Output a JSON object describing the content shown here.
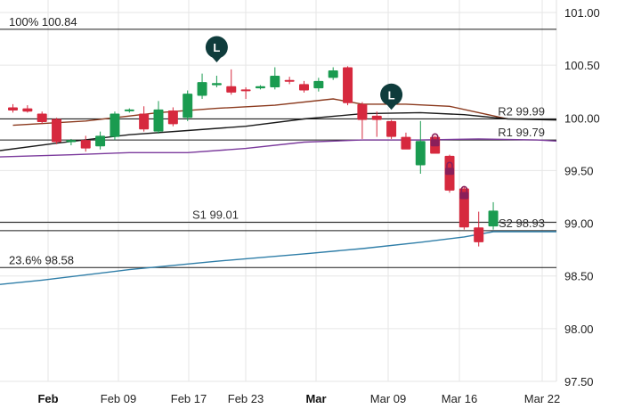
{
  "chart_data": {
    "type": "candlestick",
    "y_axis": {
      "ticks": [
        "101.00",
        "100.50",
        "100.00",
        "99.50",
        "99.00",
        "98.50",
        "98.00",
        "97.50"
      ],
      "ylim": [
        97.5,
        101.05
      ],
      "position": "right"
    },
    "x_axis": {
      "ticks": [
        {
          "label": "Feb",
          "bold": true
        },
        {
          "label": "Feb 09",
          "bold": false
        },
        {
          "label": "Feb 17",
          "bold": false
        },
        {
          "label": "Feb 23",
          "bold": false
        },
        {
          "label": "Mar",
          "bold": true
        },
        {
          "label": "Mar 09",
          "bold": false
        },
        {
          "label": "Mar 16",
          "bold": false
        },
        {
          "label": "Mar 22",
          "bold": false
        }
      ]
    },
    "grid": true,
    "colors": {
      "up": "#1a9b50",
      "down": "#d6293e",
      "grid": "#e6e6e6"
    },
    "candles": [
      {
        "o": 100.1,
        "h": 100.13,
        "l": 100.05,
        "c": 100.07
      },
      {
        "o": 100.09,
        "h": 100.12,
        "l": 100.05,
        "c": 100.06
      },
      {
        "o": 100.04,
        "h": 100.06,
        "l": 99.94,
        "c": 99.96
      },
      {
        "o": 99.99,
        "h": 100.0,
        "l": 99.75,
        "c": 99.77
      },
      {
        "o": 99.77,
        "h": 99.8,
        "l": 99.74,
        "c": 99.79
      },
      {
        "o": 99.79,
        "h": 99.83,
        "l": 99.68,
        "c": 99.71
      },
      {
        "o": 99.73,
        "h": 99.87,
        "l": 99.7,
        "c": 99.83
      },
      {
        "o": 99.82,
        "h": 100.06,
        "l": 99.79,
        "c": 100.04
      },
      {
        "o": 100.07,
        "h": 100.09,
        "l": 100.05,
        "c": 100.08
      },
      {
        "o": 100.04,
        "h": 100.11,
        "l": 99.87,
        "c": 99.89
      },
      {
        "o": 99.87,
        "h": 100.16,
        "l": 99.85,
        "c": 100.08
      },
      {
        "o": 100.07,
        "h": 100.1,
        "l": 99.92,
        "c": 99.94
      },
      {
        "o": 100.0,
        "h": 100.26,
        "l": 99.97,
        "c": 100.23
      },
      {
        "o": 100.21,
        "h": 100.42,
        "l": 100.18,
        "c": 100.34
      },
      {
        "o": 100.31,
        "h": 100.4,
        "l": 100.29,
        "c": 100.33
      },
      {
        "o": 100.3,
        "h": 100.46,
        "l": 100.22,
        "c": 100.24
      },
      {
        "o": 100.27,
        "h": 100.29,
        "l": 100.18,
        "c": 100.26
      },
      {
        "o": 100.28,
        "h": 100.31,
        "l": 100.27,
        "c": 100.3
      },
      {
        "o": 100.29,
        "h": 100.48,
        "l": 100.27,
        "c": 100.4
      },
      {
        "o": 100.36,
        "h": 100.39,
        "l": 100.32,
        "c": 100.35
      },
      {
        "o": 100.32,
        "h": 100.35,
        "l": 100.24,
        "c": 100.26
      },
      {
        "o": 100.28,
        "h": 100.38,
        "l": 100.25,
        "c": 100.35
      },
      {
        "o": 100.38,
        "h": 100.48,
        "l": 100.36,
        "c": 100.45
      },
      {
        "o": 100.48,
        "h": 100.49,
        "l": 100.12,
        "c": 100.14
      },
      {
        "o": 100.13,
        "h": 100.15,
        "l": 99.8,
        "c": 99.98
      },
      {
        "o": 100.02,
        "h": 100.06,
        "l": 99.82,
        "c": 99.98
      },
      {
        "o": 99.97,
        "h": 99.98,
        "l": 99.8,
        "c": 99.82
      },
      {
        "o": 99.82,
        "h": 99.86,
        "l": 99.72,
        "c": 99.7
      },
      {
        "o": 99.55,
        "h": 99.97,
        "l": 99.47,
        "c": 99.78
      },
      {
        "o": 99.82,
        "h": 99.83,
        "l": 99.66,
        "c": 99.66
      },
      {
        "o": 99.64,
        "h": 99.65,
        "l": 99.29,
        "c": 99.31
      },
      {
        "o": 99.33,
        "h": 99.35,
        "l": 98.94,
        "c": 98.96
      },
      {
        "o": 98.96,
        "h": 99.11,
        "l": 98.78,
        "c": 98.82
      },
      {
        "o": 98.97,
        "h": 99.2,
        "l": 98.94,
        "c": 99.12
      }
    ],
    "moving_averages": [
      {
        "color": "#8b3a1e",
        "points": [
          [
            0,
            99.93
          ],
          [
            5,
            99.97
          ],
          [
            10,
            100.05
          ],
          [
            14,
            100.09
          ],
          [
            18,
            100.12
          ],
          [
            22,
            100.18
          ],
          [
            24,
            100.13
          ],
          [
            27,
            100.13
          ],
          [
            30,
            100.11
          ],
          [
            32,
            100.05
          ],
          [
            34,
            99.99
          ]
        ]
      },
      {
        "color": "#1a1a1a",
        "points": [
          [
            -3,
            99.69
          ],
          [
            3,
            99.76
          ],
          [
            8,
            99.84
          ],
          [
            12,
            99.88
          ],
          [
            16,
            99.92
          ],
          [
            20,
            99.99
          ],
          [
            24,
            100.04
          ],
          [
            28,
            100.05
          ],
          [
            31,
            100.03
          ],
          [
            34,
            99.99
          ],
          [
            40,
            99.98
          ]
        ]
      },
      {
        "color": "#7b3a9c",
        "points": [
          [
            -3,
            99.63
          ],
          [
            4,
            99.65
          ],
          [
            8,
            99.67
          ],
          [
            12,
            99.67
          ],
          [
            16,
            99.71
          ],
          [
            20,
            99.77
          ],
          [
            24,
            99.79
          ],
          [
            28,
            99.79
          ],
          [
            32,
            99.8
          ],
          [
            36,
            99.79
          ],
          [
            40,
            99.78
          ]
        ]
      },
      {
        "color": "#2f7ea8",
        "points": [
          [
            -3,
            98.42
          ],
          [
            2,
            98.46
          ],
          [
            8,
            98.56
          ],
          [
            14,
            98.64
          ],
          [
            20,
            98.71
          ],
          [
            24,
            98.76
          ],
          [
            28,
            98.82
          ],
          [
            31,
            98.87
          ],
          [
            33,
            98.92
          ],
          [
            40,
            98.92
          ]
        ]
      }
    ],
    "levels": [
      {
        "label": "100% 100.84",
        "value": 100.84,
        "align": "left"
      },
      {
        "label": "R2 99.99",
        "value": 99.99,
        "align": "right"
      },
      {
        "label": "R1 99.79",
        "value": 99.79,
        "align": "right"
      },
      {
        "label": "S1 99.01",
        "value": 99.01,
        "align": "center"
      },
      {
        "label": "S2 98.93",
        "value": 98.93,
        "align": "right"
      },
      {
        "label": "23.6% 98.58",
        "value": 98.58,
        "align": "left"
      }
    ],
    "markers": [
      {
        "label": "L",
        "index": 14,
        "value": 100.67
      },
      {
        "label": "L",
        "index": 26,
        "value": 100.22
      }
    ],
    "lock_markers": [
      {
        "index": 29,
        "value": 99.78
      },
      {
        "index": 30,
        "value": 99.51
      },
      {
        "index": 31,
        "value": 99.28
      }
    ]
  }
}
